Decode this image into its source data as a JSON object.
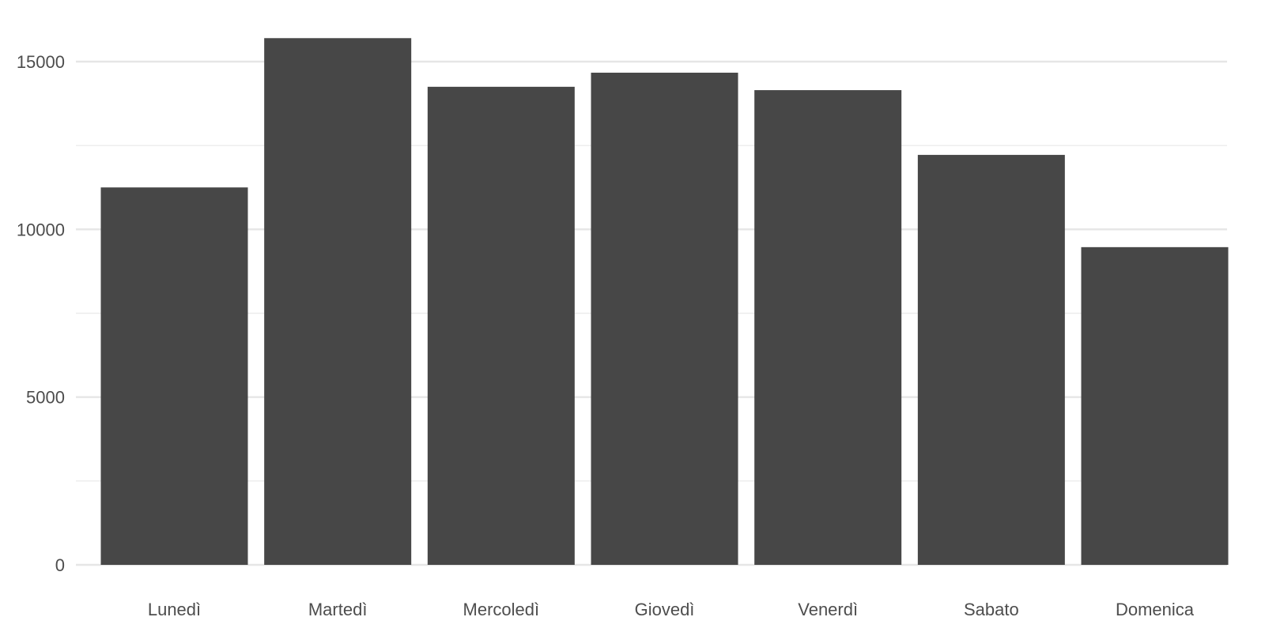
{
  "chart_data": {
    "type": "bar",
    "categories": [
      "Lunedì",
      "Martedì",
      "Mercoledì",
      "Giovedì",
      "Venerdì",
      "Sabato",
      "Domenica"
    ],
    "values": [
      11250,
      15700,
      14250,
      14670,
      14150,
      12220,
      9470
    ],
    "ylim": [
      0,
      16400
    ],
    "yticks": [
      0,
      5000,
      10000,
      15000
    ],
    "ytick_labels": [
      "0",
      "5000",
      "10000",
      "15000"
    ],
    "minor_yticks": [
      2500,
      7500,
      12500
    ],
    "grid": true,
    "bar_color": "#474747",
    "grid_color": "#e6e6e6",
    "text_color": "#4d4d4d"
  }
}
